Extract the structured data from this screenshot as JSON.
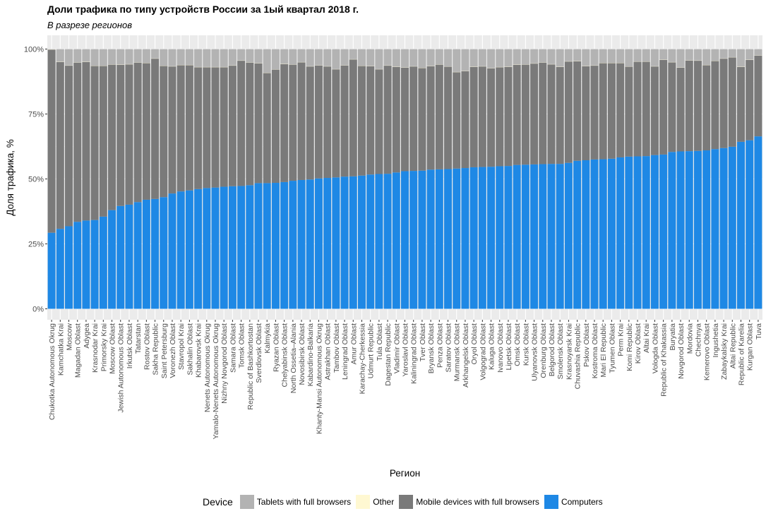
{
  "chart_data": {
    "type": "bar",
    "stacked": true,
    "title": "Доли трафика по типу устройств России за 1ый квартал 2018 г.",
    "subtitle": "В разрезе регионов",
    "xlabel": "Регион",
    "ylabel": "Доля трафика, %",
    "ylim": [
      0,
      100
    ],
    "yticks": [
      "0%",
      "25%",
      "50%",
      "75%",
      "100%"
    ],
    "grid": true,
    "legend_title": "Device",
    "legend_position": "bottom",
    "categories": [
      "Chukotka Autonomous Okrug",
      "Kamchatka Krai",
      "Moscow",
      "Magadan Oblast",
      "Adygea",
      "Krasnodar Krai",
      "Primorsky Krai",
      "Moscow Oblast",
      "Jewish Autonomous Oblast",
      "Irkutsk Oblast",
      "Tatarstan",
      "Rostov Oblast",
      "Sakha Republic",
      "Saint Petersburg",
      "Voronezh Oblast",
      "Stavropol Krai",
      "Sakhalin Oblast",
      "Khabarovsk Krai",
      "Nenets Autonomous Okrug",
      "Yamalo-Nenets Autonomous Okrug",
      "Nizhny Novgorod Oblast",
      "Samara Oblast",
      "Tomsk Oblast",
      "Republic of Bashkortostan",
      "Sverdlovsk Oblast",
      "Kalmykia",
      "Ryazan Oblast",
      "Chelyabinsk Oblast",
      "North Ossetia–Alania",
      "Novosibirsk Oblast",
      "Kabardino-Balkaria",
      "Khanty-Mansi Autonomous Okrug",
      "Astrakhan Oblast",
      "Tambov Oblast",
      "Leningrad Oblast",
      "Amur Oblast",
      "Karachay-Cherkessia",
      "Udmurt Republic",
      "Tula Oblast",
      "Dagestan Republic",
      "Vladimir Oblast",
      "Yaroslavl Oblast",
      "Kaliningrad Oblast",
      "Tver Oblast",
      "Bryansk Oblast",
      "Penza Oblast",
      "Saratov Oblast",
      "Murmansk Oblast",
      "Arkhangelsk Oblast",
      "Oryol Oblast",
      "Volgograd Oblast",
      "Kaluga Oblast",
      "Ivanovo Oblast",
      "Lipetsk Oblast",
      "Omsk Oblast",
      "Kursk Oblast",
      "Ulyanovsk Oblast",
      "Orenburg Oblast",
      "Belgorod Oblast",
      "Smolensk Oblast",
      "Krasnoyarsk Krai",
      "Chuvashia Republic",
      "Pskov Oblast",
      "Kostroma Oblast",
      "Mari El Republic",
      "Tyumen Oblast",
      "Perm Krai",
      "Komi Republic",
      "Kirov Oblast",
      "Altai Krai",
      "Vologda Oblast",
      "Republic of Khakassia",
      "Buryatia",
      "Novgorod Oblast",
      "Mordovia",
      "Chechnya",
      "Kemerovo Oblast",
      "Ingushetia",
      "Zabaykalsky Krai",
      "Altai Republic",
      "Republic of Karelia",
      "Kurgan Oblast",
      "Tuva"
    ],
    "series": [
      {
        "name": "Computers",
        "color": "#1e88e5",
        "values": [
          29.3,
          30.8,
          31.8,
          33.5,
          34.0,
          34.2,
          35.5,
          38.0,
          39.6,
          40.1,
          41.1,
          42.0,
          42.3,
          43.0,
          44.4,
          45.2,
          45.6,
          46.1,
          46.5,
          46.7,
          47.0,
          47.2,
          47.3,
          47.6,
          48.4,
          48.4,
          48.5,
          48.8,
          49.3,
          49.6,
          49.8,
          50.2,
          50.4,
          50.6,
          50.9,
          51.0,
          51.3,
          51.7,
          51.9,
          52.0,
          52.5,
          53.0,
          53.1,
          53.2,
          53.6,
          53.7,
          53.8,
          54.0,
          54.2,
          54.5,
          54.6,
          54.7,
          54.9,
          55.0,
          55.4,
          55.5,
          55.6,
          55.7,
          55.8,
          55.8,
          56.2,
          57.0,
          57.2,
          57.5,
          57.6,
          57.8,
          58.3,
          58.6,
          58.7,
          58.8,
          59.2,
          59.4,
          60.4,
          60.6,
          60.7,
          60.8,
          61.0,
          61.5,
          61.9,
          62.4,
          64.3,
          64.9,
          66.4
        ]
      },
      {
        "name": "Mobile devices with full browsers",
        "color": "#7a7a7a",
        "values": [
          70.5,
          64.2,
          61.8,
          61.3,
          61.0,
          59.3,
          58.0,
          56.0,
          54.3,
          54.0,
          53.7,
          52.6,
          54.0,
          50.5,
          48.9,
          48.6,
          48.2,
          46.9,
          46.5,
          46.3,
          46.0,
          46.4,
          48.2,
          47.2,
          46.1,
          42.4,
          43.6,
          45.4,
          44.7,
          45.3,
          43.5,
          43.5,
          42.9,
          41.6,
          42.8,
          45.0,
          42.2,
          41.7,
          40.3,
          41.6,
          40.6,
          39.8,
          40.2,
          39.5,
          39.8,
          40.3,
          39.4,
          37.1,
          37.3,
          38.6,
          38.7,
          37.9,
          38.1,
          38.1,
          38.5,
          38.5,
          38.8,
          39.1,
          38.3,
          37.3,
          39.0,
          38.3,
          36.2,
          36.1,
          37.0,
          36.8,
          36.3,
          34.6,
          36.4,
          36.3,
          34.1,
          36.4,
          34.5,
          32.2,
          34.9,
          34.7,
          32.8,
          33.9,
          34.4,
          34.4,
          28.8,
          30.9,
          31.1
        ]
      },
      {
        "name": "Other",
        "color": "#fff8d2",
        "values": [
          0.1,
          0.1,
          0.1,
          0.1,
          0.1,
          0.1,
          0.1,
          0.1,
          0.1,
          0.1,
          0.1,
          0.1,
          0.1,
          0.1,
          0.1,
          0.1,
          0.1,
          0.1,
          0.1,
          0.1,
          0.1,
          0.1,
          0.1,
          0.1,
          0.1,
          0.1,
          0.1,
          0.1,
          0.1,
          0.1,
          0.1,
          0.1,
          0.1,
          0.1,
          0.1,
          0.1,
          0.1,
          0.1,
          0.1,
          0.1,
          0.1,
          0.1,
          0.1,
          0.1,
          0.1,
          0.1,
          0.1,
          0.1,
          0.1,
          0.1,
          0.1,
          0.1,
          0.1,
          0.1,
          0.1,
          0.1,
          0.1,
          0.1,
          0.1,
          0.1,
          0.1,
          0.1,
          0.1,
          0.1,
          0.1,
          0.1,
          0.1,
          0.1,
          0.1,
          0.1,
          0.1,
          0.1,
          0.1,
          0.1,
          0.1,
          0.1,
          0.1,
          0.1,
          0.1,
          0.1,
          0.1,
          0.1,
          0.1
        ]
      },
      {
        "name": "Tablets with full browsers",
        "color": "#b3b3b3",
        "values": [
          0.1,
          4.9,
          6.3,
          5.1,
          4.9,
          6.4,
          6.4,
          5.9,
          6.0,
          5.8,
          5.1,
          5.3,
          3.6,
          6.4,
          6.6,
          6.1,
          6.1,
          6.9,
          6.9,
          6.9,
          6.9,
          6.3,
          4.4,
          5.1,
          5.4,
          9.1,
          7.8,
          5.7,
          5.9,
          5.0,
          6.6,
          6.2,
          6.6,
          7.7,
          6.2,
          3.9,
          6.4,
          6.5,
          7.7,
          6.3,
          6.8,
          7.1,
          6.6,
          7.2,
          6.5,
          5.9,
          6.7,
          8.8,
          8.4,
          6.8,
          6.6,
          7.3,
          6.9,
          6.8,
          6.0,
          5.9,
          5.5,
          5.1,
          5.8,
          6.8,
          4.7,
          4.6,
          6.5,
          6.3,
          5.3,
          5.3,
          5.3,
          6.7,
          4.8,
          4.8,
          6.6,
          4.1,
          5.0,
          7.1,
          4.3,
          4.4,
          6.1,
          4.5,
          3.6,
          3.1,
          6.8,
          4.1,
          2.4
        ]
      }
    ]
  }
}
